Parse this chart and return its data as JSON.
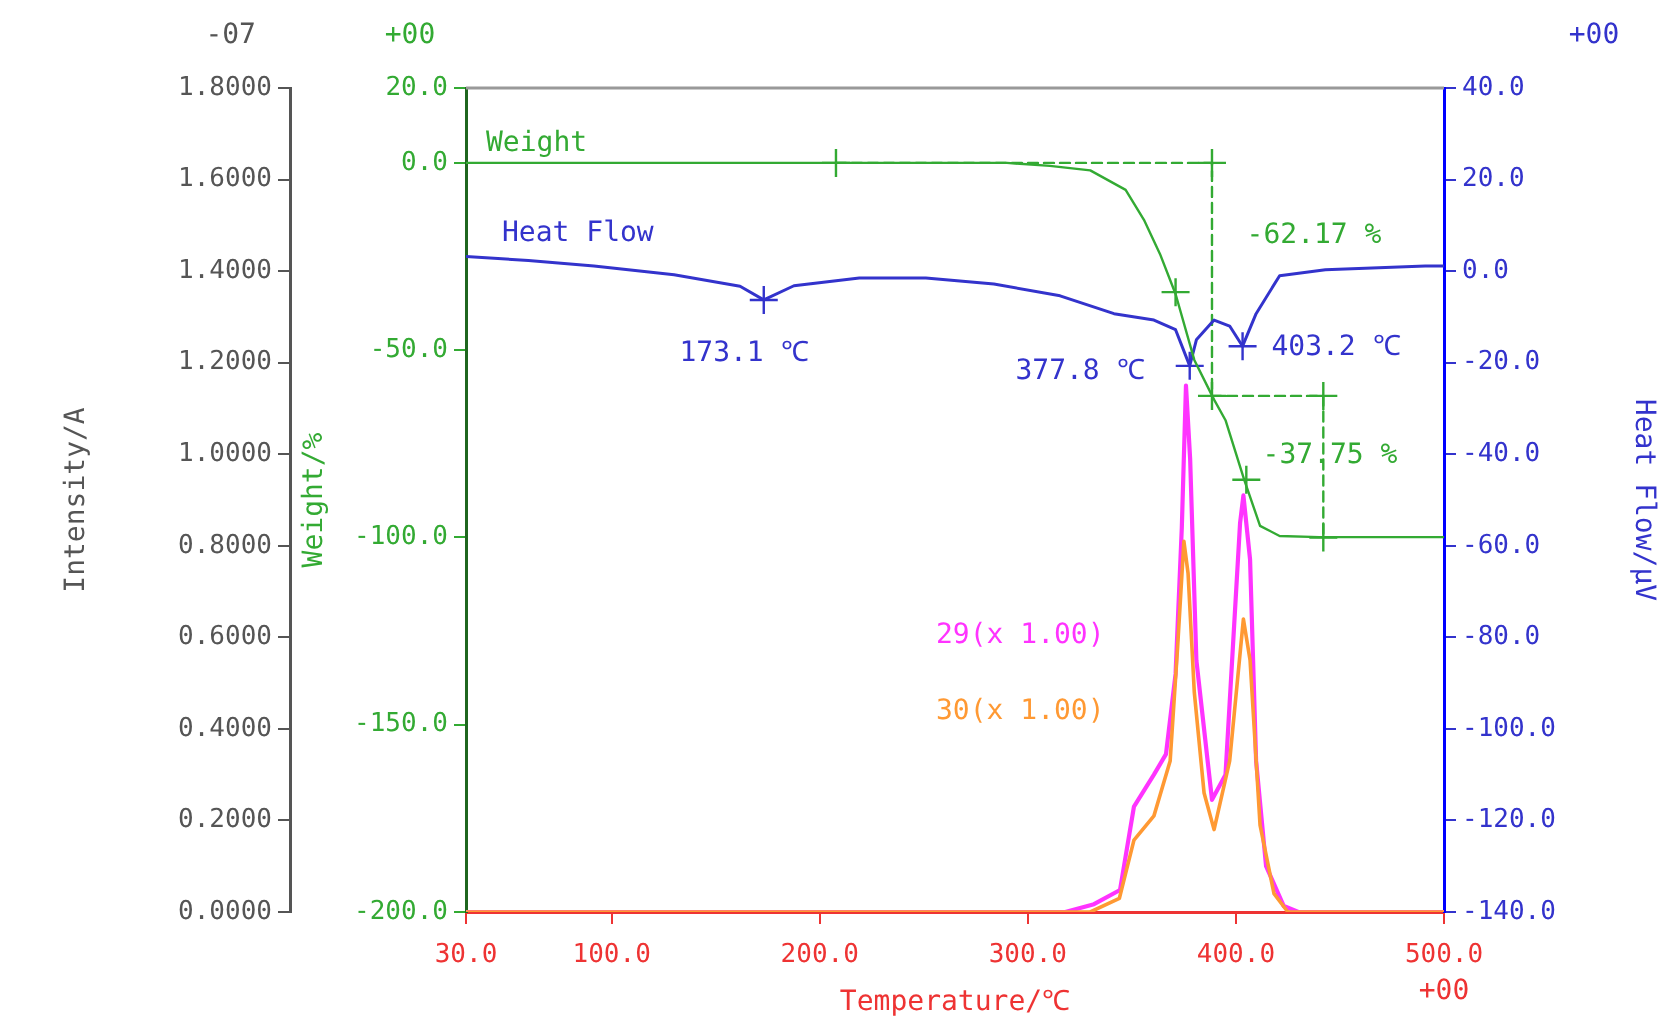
{
  "chart_data": {
    "type": "line",
    "xlabel": "Temperature/℃",
    "ylabel": "Weight/%",
    "y2label": "Heat Flow/μV",
    "y3label": "Intensity/A",
    "xlim": [
      30,
      500
    ],
    "xticks": [
      {
        "value": 30,
        "label": "30.0"
      },
      {
        "value": 100,
        "label": "100.0"
      },
      {
        "value": 200,
        "label": "200.0"
      },
      {
        "value": 300,
        "label": "300.0"
      },
      {
        "value": 400,
        "label": "400.0"
      },
      {
        "value": 500,
        "label": "500.0"
      }
    ],
    "ylim": [
      -200,
      20
    ],
    "yticks": [
      {
        "value": 20,
        "label": "20.0"
      },
      {
        "value": 0,
        "label": "0.0"
      },
      {
        "value": -50,
        "label": "-50.0"
      },
      {
        "value": -100,
        "label": "-100.0"
      },
      {
        "value": -150,
        "label": "-150.0"
      },
      {
        "value": -200,
        "label": "-200.0"
      }
    ],
    "y2lim": [
      -140,
      40
    ],
    "y2ticks": [
      {
        "value": 40,
        "label": "40.0"
      },
      {
        "value": 20,
        "label": "20.0"
      },
      {
        "value": 0,
        "label": "0.0"
      },
      {
        "value": -20,
        "label": "-20.0"
      },
      {
        "value": -40,
        "label": "-40.0"
      },
      {
        "value": -60,
        "label": "-60.0"
      },
      {
        "value": -80,
        "label": "-80.0"
      },
      {
        "value": -100,
        "label": "-100.0"
      },
      {
        "value": -120,
        "label": "-120.0"
      },
      {
        "value": -140,
        "label": "-140.0"
      }
    ],
    "y3lim": [
      0,
      1.8
    ],
    "y3ticks": [
      {
        "value": 1.8,
        "label": "1.8000"
      },
      {
        "value": 1.6,
        "label": "1.6000"
      },
      {
        "value": 1.4,
        "label": "1.4000"
      },
      {
        "value": 1.2,
        "label": "1.2000"
      },
      {
        "value": 1.0,
        "label": "1.0000"
      },
      {
        "value": 0.8,
        "label": "0.8000"
      },
      {
        "value": 0.6,
        "label": "0.6000"
      },
      {
        "value": 0.4,
        "label": "0.4000"
      },
      {
        "value": 0.2,
        "label": "0.2000"
      },
      {
        "value": 0,
        "label": "0.0000"
      }
    ],
    "grid": false,
    "legend": false,
    "marker": "none",
    "line_style": "solid",
    "series": [
      {
        "name": "Weight",
        "color": "#33aa33",
        "axis": "y",
        "x": [
          30,
          100,
          200,
          290,
          310.6,
          330,
          347,
          355.8,
          363.5,
          371,
          380,
          389.5,
          395,
          404,
          411.6,
          421,
          440,
          470,
          500
        ],
        "values": [
          0,
          0,
          0,
          0,
          -0.8,
          -2,
          -7.2,
          -15.2,
          -24.3,
          -35,
          -52.6,
          -63.2,
          -68.7,
          -84.6,
          -96.9,
          -99.6,
          -99.9,
          -99.9,
          -99.9
        ]
      },
      {
        "name": "Heat Flow",
        "color": "#3333cc",
        "axis": "y2",
        "x": [
          30,
          60,
          91.5,
          130,
          161.7,
          173.1,
          187.6,
          219,
          251,
          283.7,
          315.5,
          341.4,
          360.6,
          371,
          377.8,
          381,
          389.5,
          397,
          403.2,
          409.7,
          421,
          443,
          491,
          500
        ],
        "values": [
          3.2,
          2.3,
          1.1,
          -0.8,
          -3.3,
          -6.3,
          -3.2,
          -1.5,
          -1.5,
          -2.8,
          -5.4,
          -9.3,
          -10.7,
          -12.8,
          -20.7,
          -15,
          -10.7,
          -12,
          -16.4,
          -9.3,
          -1,
          0.3,
          1.1,
          1.1
        ]
      },
      {
        "name": "30(x 1.00)",
        "color": "#ff9933",
        "axis": "y3",
        "x": [
          30,
          330,
          344,
          351,
          360.6,
          368.4,
          372,
          375,
          377,
          380,
          384.7,
          389.5,
          397,
          403.6,
          406.8,
          411.6,
          418.3,
          425,
          500
        ],
        "values": [
          0,
          0,
          0.03,
          0.157,
          0.21,
          0.33,
          0.58,
          0.81,
          0.74,
          0.48,
          0.26,
          0.18,
          0.33,
          0.64,
          0.55,
          0.19,
          0.04,
          0,
          0
        ]
      },
      {
        "name": "29(x 1.00)",
        "color": "#ff33ff",
        "axis": "y3",
        "x": [
          30,
          318,
          331.8,
          344.3,
          351,
          360.6,
          366.4,
          371,
          374,
          376,
          378,
          381,
          388.5,
          395,
          402,
          403.6,
          406.8,
          409.7,
          414.5,
          423,
          430,
          500
        ],
        "values": [
          0,
          0,
          0.017,
          0.048,
          0.23,
          0.3,
          0.345,
          0.52,
          0.84,
          1.15,
          0.99,
          0.55,
          0.245,
          0.3,
          0.85,
          0.91,
          0.77,
          0.33,
          0.1,
          0.013,
          0,
          0
        ]
      },
      {
        "type": "line",
        "line_style": "dashed",
        "color": "#33aa33",
        "axis": "y",
        "x": [
          207.8,
          388.5,
          388.5,
          442,
          442
        ],
        "values": [
          0,
          0,
          -62.2,
          -62.2,
          -100
        ]
      },
      {
        "type": "scatter",
        "marker": "cross",
        "color": "#33aa33",
        "axis": "y",
        "x": [
          207.8,
          388.5,
          371,
          388.5,
          442,
          405,
          442
        ],
        "values": [
          0,
          0,
          -34.5,
          -62.2,
          -62.2,
          -84.6,
          -100
        ]
      },
      {
        "type": "scatter",
        "marker": "cross",
        "color": "#3333cc",
        "axis": "y2",
        "x": [
          173.1,
          377.8,
          403.2
        ],
        "values": [
          -6.3,
          -20.7,
          -16.4
        ]
      }
    ],
    "annotations": [
      "173.1 ℃",
      "377.8 ℃",
      "403.2 ℃",
      "-62.17 %",
      "-37.75 %",
      "-07",
      "+00",
      "+00",
      "+00"
    ]
  }
}
